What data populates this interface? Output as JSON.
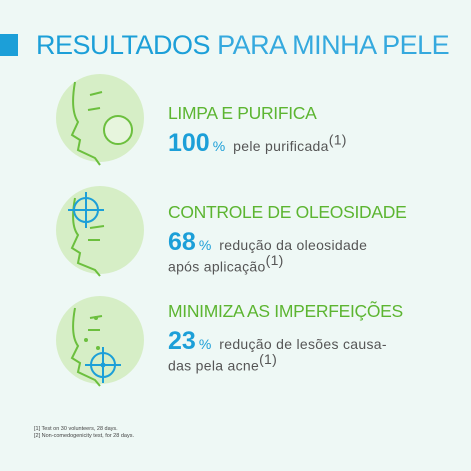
{
  "title": {
    "bold": "RESULTADOS",
    "light": "PARA MINHA PELE"
  },
  "items": [
    {
      "heading": "LIMPA E PURIFICA",
      "number": 100,
      "unit": "%",
      "lines": [
        "pele purificada"
      ],
      "note": "(1)"
    },
    {
      "heading": "CONTROLE DE OLEOSIDADE",
      "number": 68,
      "unit": "%",
      "lines": [
        "redução da oleosidade",
        "após aplicação"
      ],
      "note": "(1)"
    },
    {
      "heading": "MINIMIZA AS IMPERFEIÇÕES",
      "number": 23,
      "unit": "%",
      "lines": [
        "redução de lesões causa-",
        "das pela acne"
      ],
      "note": "(1)"
    }
  ],
  "footnotes": [
    "[1] Test on 30 volunteers, 28 days.",
    "[2] Non-comedogenicity test, for 28 days."
  ]
}
